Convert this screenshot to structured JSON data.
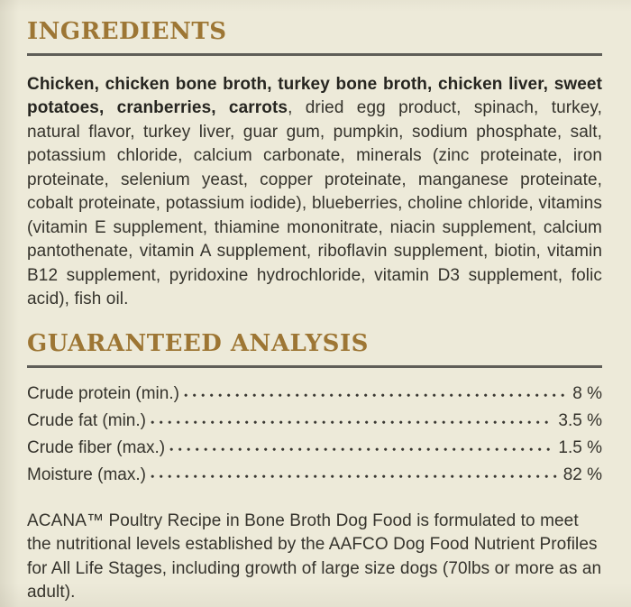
{
  "page": {
    "colors": {
      "bg": "#edead9",
      "accent": "#9d7634",
      "text": "#35332c",
      "text_strong": "#262520",
      "rule": "#5f5e58",
      "dots": "#3a3832"
    }
  },
  "ingredients": {
    "title": "INGREDIENTS",
    "lead_bold": "Chicken, chicken bone broth, turkey bone broth, chicken liver, sweet potatoes, cranberries, carrots",
    "rest": ", dried egg product, spinach, turkey, natural flavor, turkey liver, guar gum, pumpkin, sodium phosphate, salt, potassium chloride, calcium carbonate, minerals (zinc proteinate, iron proteinate, selenium yeast, copper proteinate, manganese proteinate, cobalt proteinate, potassium iodide), blueberries, choline chloride, vitamins (vitamin E supplement, thiamine mononitrate, niacin supplement, calcium pantothenate, vitamin A supplement, riboflavin supplement, biotin, vitamin B12 supplement, pyridoxine hydrochloride, vitamin D3 supplement, folic acid), fish oil."
  },
  "guaranteed_analysis": {
    "title": "GUARANTEED ANALYSIS",
    "rows": [
      {
        "label": "Crude protein (min.)",
        "value": "8 %"
      },
      {
        "label": "Crude fat (min.)",
        "value": "3.5 %"
      },
      {
        "label": "Crude fiber (max.)",
        "value": "1.5 %"
      },
      {
        "label": "Moisture (max.)",
        "value": "82 %"
      }
    ]
  },
  "aafco_statement": "ACANA™ Poultry Recipe in Bone Broth Dog Food is formulated to meet the nutritional levels established by the AAFCO Dog Food Nutrient Profiles for All Life Stages, including growth of large size dogs (70lbs or more as an adult)."
}
